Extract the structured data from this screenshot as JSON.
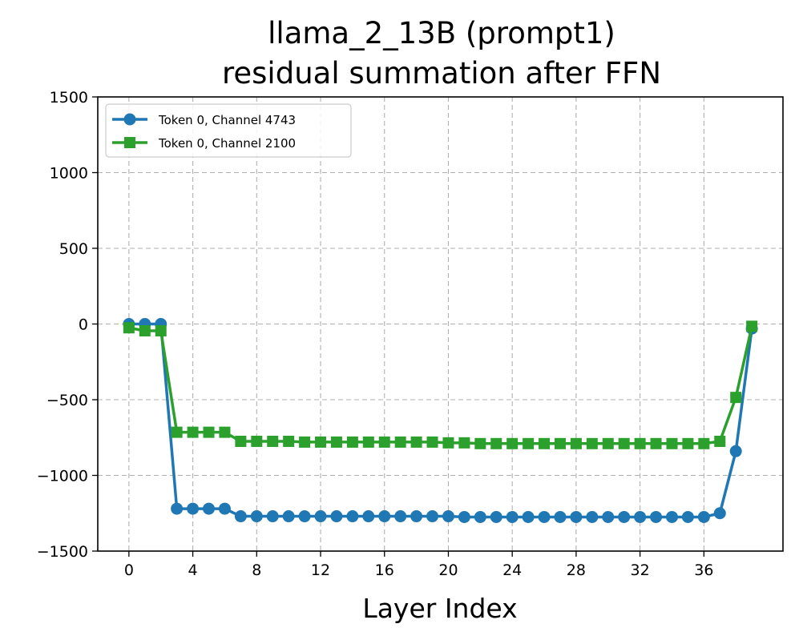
{
  "chart_data": {
    "type": "line",
    "title_line1": "llama_2_13B (prompt1)",
    "title_line2": "residual summation after FFN",
    "xlabel": "Layer Index",
    "ylabel": "",
    "xlim": [
      -1.95,
      40.95
    ],
    "ylim": [
      -1500,
      1500
    ],
    "x_ticks": [
      0,
      4,
      8,
      12,
      16,
      20,
      24,
      28,
      32,
      36
    ],
    "y_ticks": [
      -1500,
      -1000,
      -500,
      0,
      500,
      1000,
      1500
    ],
    "y_tick_labels": [
      "−1500",
      "−1000",
      "−500",
      "0",
      "500",
      "1000",
      "1500"
    ],
    "grid": true,
    "legend_position": "upper-left",
    "x": [
      0,
      1,
      2,
      3,
      4,
      5,
      6,
      7,
      8,
      9,
      10,
      11,
      12,
      13,
      14,
      15,
      16,
      17,
      18,
      19,
      20,
      21,
      22,
      23,
      24,
      25,
      26,
      27,
      28,
      29,
      30,
      31,
      32,
      33,
      34,
      35,
      36,
      37,
      38,
      39
    ],
    "series": [
      {
        "name": "Token 0, Channel 4743",
        "color": "#1f77b4",
        "marker": "circle",
        "values": [
          0,
          0,
          0,
          -1220,
          -1220,
          -1220,
          -1220,
          -1270,
          -1270,
          -1270,
          -1270,
          -1270,
          -1270,
          -1270,
          -1270,
          -1270,
          -1270,
          -1270,
          -1270,
          -1270,
          -1270,
          -1275,
          -1275,
          -1275,
          -1275,
          -1275,
          -1275,
          -1275,
          -1275,
          -1275,
          -1275,
          -1275,
          -1275,
          -1275,
          -1275,
          -1275,
          -1275,
          -1250,
          -840,
          -30
        ]
      },
      {
        "name": "Token 0, Channel 2100",
        "color": "#2ca02c",
        "marker": "square",
        "values": [
          -25,
          -45,
          -45,
          -715,
          -715,
          -715,
          -715,
          -775,
          -775,
          -775,
          -775,
          -780,
          -780,
          -780,
          -780,
          -780,
          -780,
          -780,
          -780,
          -780,
          -785,
          -785,
          -790,
          -790,
          -790,
          -790,
          -790,
          -790,
          -790,
          -790,
          -790,
          -790,
          -790,
          -790,
          -790,
          -790,
          -790,
          -775,
          -485,
          -15
        ]
      }
    ]
  }
}
